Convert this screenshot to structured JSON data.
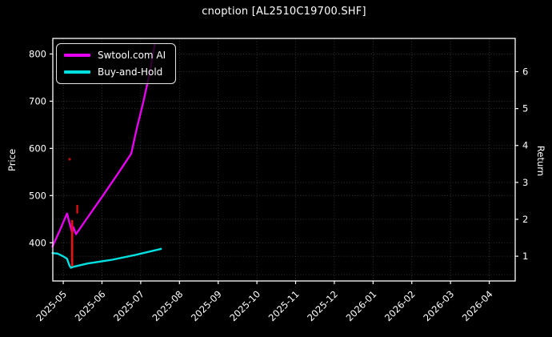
{
  "chart_data": {
    "type": "line",
    "title": "cnoption [AL2510C19700.SHF]",
    "grid": true,
    "background": "#000000",
    "text_color": "#ffffff",
    "x_axis": {
      "tick_labels": [
        "2025-05",
        "2025-06",
        "2025-07",
        "2025-08",
        "2025-09",
        "2025-10",
        "2025-11",
        "2025-12",
        "2026-01",
        "2026-02",
        "2026-03",
        "2026-04"
      ],
      "tick_rotation_deg": 45,
      "offset_range_months": [
        -0.27,
        11.67
      ]
    },
    "left_axis": {
      "label": "Price",
      "ticks": [
        400,
        500,
        600,
        700,
        800
      ],
      "range": [
        319,
        833
      ]
    },
    "right_axis": {
      "label": "Return",
      "ticks": [
        1,
        2,
        3,
        4,
        5,
        6
      ],
      "extra_gridlines": [
        0.5
      ],
      "range": [
        0.33,
        6.9
      ]
    },
    "legend": {
      "position": "upper-left",
      "entries": [
        {
          "label": "Swtool.com AI",
          "color": "#e800f0"
        },
        {
          "label": "Buy-and-Hold",
          "color": "#00e0e0"
        }
      ]
    },
    "series": [
      {
        "name": "Swtool.com AI",
        "color": "#e800f0",
        "width": 2.4,
        "points": [
          {
            "date": "2025-04-23",
            "price": 392
          },
          {
            "date": "2025-04-29",
            "price": 428
          },
          {
            "date": "2025-05-04",
            "price": 462
          },
          {
            "date": "2025-05-08",
            "price": 421
          },
          {
            "date": "2025-05-09",
            "price": 433
          },
          {
            "date": "2025-05-11",
            "price": 418
          },
          {
            "date": "2025-05-20",
            "price": 453
          },
          {
            "date": "2025-06-02",
            "price": 501
          },
          {
            "date": "2025-06-15",
            "price": 552
          },
          {
            "date": "2025-06-24",
            "price": 589
          },
          {
            "date": "2025-06-28",
            "price": 638
          },
          {
            "date": "2025-07-03",
            "price": 698
          },
          {
            "date": "2025-07-08",
            "price": 759
          },
          {
            "date": "2025-07-12",
            "price": 820
          }
        ]
      },
      {
        "name": "Buy-and-Hold",
        "color": "#00e0e0",
        "width": 2.4,
        "points": [
          {
            "date": "2025-04-23",
            "price": 378
          },
          {
            "date": "2025-04-27",
            "price": 377
          },
          {
            "date": "2025-05-01",
            "price": 371
          },
          {
            "date": "2025-05-04",
            "price": 366
          },
          {
            "date": "2025-05-06",
            "price": 351
          },
          {
            "date": "2025-05-07",
            "price": 347
          },
          {
            "date": "2025-05-09",
            "price": 349
          },
          {
            "date": "2025-05-20",
            "price": 356
          },
          {
            "date": "2025-06-09",
            "price": 364
          },
          {
            "date": "2025-06-27",
            "price": 374
          },
          {
            "date": "2025-07-17",
            "price": 387
          }
        ]
      }
    ],
    "annotations": [
      {
        "type": "segment",
        "name": "red-event-line",
        "date": "2025-05-08",
        "price_from": 350,
        "price_to": 448,
        "color": "#ee1111",
        "width": 2.6
      },
      {
        "type": "segment",
        "name": "red-event-tick",
        "date": "2025-05-12",
        "price_from": 462,
        "price_to": 480,
        "color": "#ee1111",
        "width": 2.2
      },
      {
        "type": "dot",
        "name": "red-event-dot",
        "date": "2025-05-06",
        "price": 577,
        "color": "#aa1111",
        "radius": 1.7
      }
    ]
  }
}
